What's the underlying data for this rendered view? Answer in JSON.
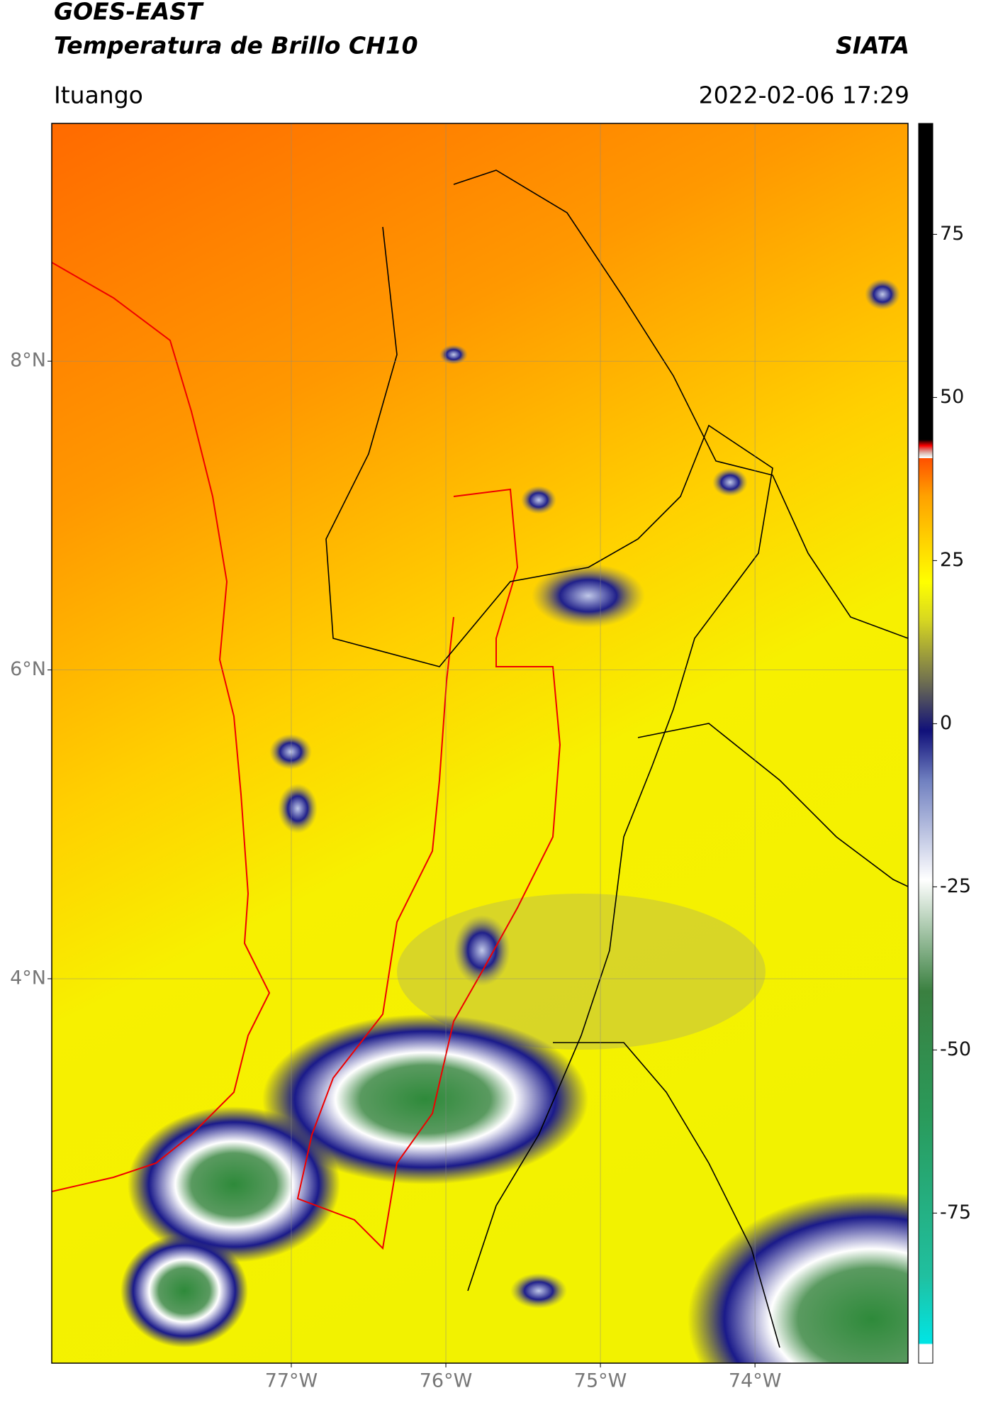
{
  "header": {
    "title": "GOES-EAST",
    "subtitle": "Temperatura de Brillo CH10",
    "source": "SIATA",
    "location": "Ituango",
    "datetime": "2022-02-06 17:29"
  },
  "map": {
    "xlim": [
      -78.55,
      -73.01
    ],
    "ylim": [
      1.51,
      9.54
    ],
    "xticks": [
      {
        "value": -77,
        "label": "77°W"
      },
      {
        "value": -76,
        "label": "76°W"
      },
      {
        "value": -75,
        "label": "75°W"
      },
      {
        "value": -74,
        "label": "74°W"
      }
    ],
    "yticks": [
      {
        "value": 4,
        "label": "4°N"
      },
      {
        "value": 6,
        "label": "6°N"
      },
      {
        "value": 8,
        "label": "8°N"
      }
    ],
    "grid": true
  },
  "colorbar": {
    "lim": [
      -98,
      92
    ],
    "ticks": [
      -75,
      -50,
      -25,
      0,
      25,
      50,
      75
    ]
  }
}
